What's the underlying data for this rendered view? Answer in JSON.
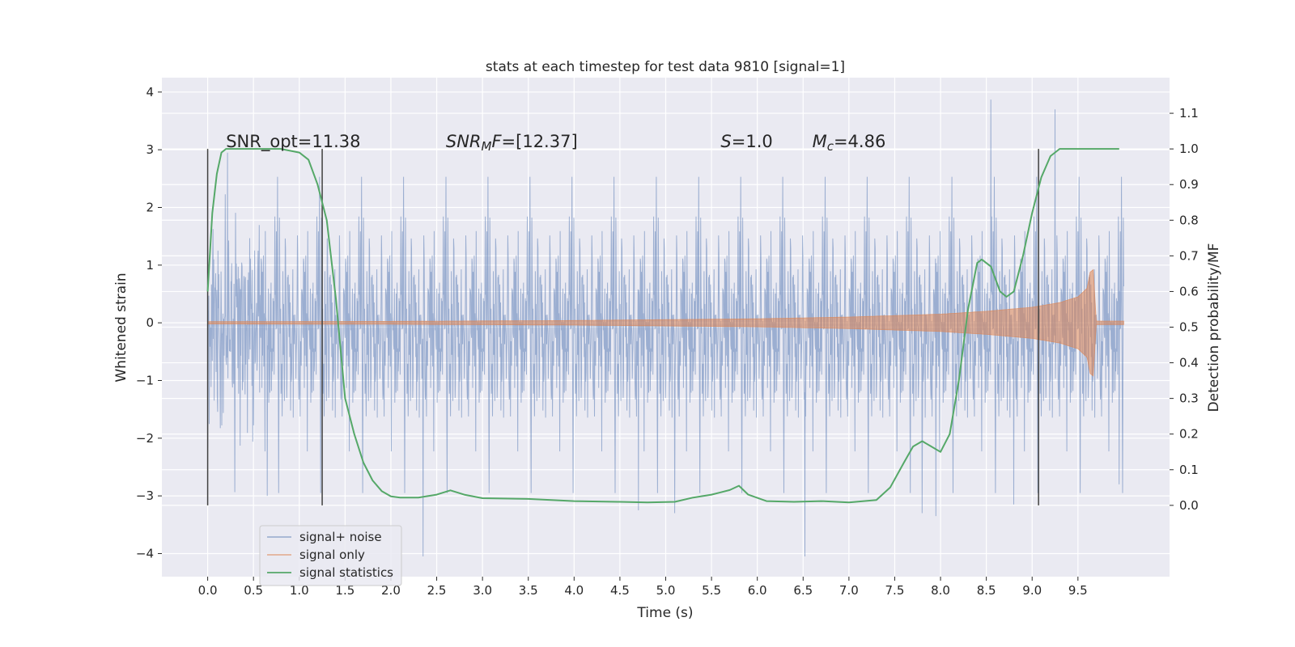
{
  "chart_data": {
    "type": "line",
    "title": "stats at each timestep for test data 9810 [signal=1]",
    "xlabel": "Time (s)",
    "ylabel": "Whitened strain",
    "ylabel_right": "Detection probability/MF",
    "xlim": [
      -0.5,
      10.5
    ],
    "ylim": [
      -4.4,
      4.25
    ],
    "ylim_right": [
      -0.2,
      1.2
    ],
    "xticks": [
      0.0,
      0.5,
      1.0,
      1.5,
      2.0,
      2.5,
      3.0,
      3.5,
      4.0,
      4.5,
      5.0,
      5.5,
      6.0,
      6.5,
      7.0,
      7.5,
      8.0,
      8.5,
      9.0,
      9.5
    ],
    "xtick_labels": [
      "0.0",
      "0.5",
      "1.0",
      "1.5",
      "2.0",
      "2.5",
      "3.0",
      "3.5",
      "4.0",
      "4.5",
      "5.0",
      "5.5",
      "6.0",
      "6.5",
      "7.0",
      "7.5",
      "8.0",
      "8.5",
      "9.0",
      "9.5"
    ],
    "yticks_left": [
      -4,
      -3,
      -2,
      -1,
      0,
      1,
      2,
      3,
      4
    ],
    "ytick_labels_left": [
      "−4",
      "−3",
      "−2",
      "−1",
      "0",
      "1",
      "2",
      "3",
      "4"
    ],
    "yticks_right": [
      0.0,
      0.1,
      0.2,
      0.3,
      0.4,
      0.5,
      0.6,
      0.7,
      0.8,
      0.9,
      1.0,
      1.1
    ],
    "ytick_labels_right": [
      "0.0",
      "0.1",
      "0.2",
      "0.3",
      "0.4",
      "0.5",
      "0.6",
      "0.7",
      "0.8",
      "0.9",
      "1.0",
      "1.1"
    ],
    "grid": true,
    "legend_position": "lower-left",
    "annotations": [
      {
        "id": "snr-opt",
        "parts": [
          {
            "t": "SNR_opt=11.38",
            "style": "normal"
          }
        ],
        "x": 0.2,
        "y_right": 1.0
      },
      {
        "id": "snr-mf",
        "parts": [
          {
            "t": "SNR",
            "style": "italic"
          },
          {
            "t": "M",
            "style": "italic-sub"
          },
          {
            "t": "F",
            "style": "italic"
          },
          {
            "t": "=[12.37]",
            "style": "normal"
          }
        ],
        "x": 2.6,
        "y_right": 1.0
      },
      {
        "id": "s-value",
        "parts": [
          {
            "t": "S",
            "style": "italic"
          },
          {
            "t": "=1.0",
            "style": "normal"
          }
        ],
        "x": 5.6,
        "y_right": 1.0
      },
      {
        "id": "mc-value",
        "parts": [
          {
            "t": "M",
            "style": "italic"
          },
          {
            "t": "c",
            "style": "italic-sub"
          },
          {
            "t": "=4.86",
            "style": "normal"
          }
        ],
        "x": 6.6,
        "y_right": 1.0
      }
    ],
    "vertical_markers": [
      0.0,
      1.25,
      9.07
    ],
    "vertical_marker_range_right": [
      0.0,
      1.0
    ],
    "series": [
      {
        "name": "signal+ noise",
        "axis": "left",
        "color": "#4c72b0",
        "opacity": 0.5,
        "x_range": [
          0.0,
          10.0
        ],
        "envelope_typical": 1.75,
        "notable_extrema": [
          {
            "x": 0.65,
            "y": -3.0
          },
          {
            "x": 2.35,
            "y": -4.05
          },
          {
            "x": 4.7,
            "y": -3.25
          },
          {
            "x": 5.1,
            "y": -3.3
          },
          {
            "x": 6.52,
            "y": -4.05
          },
          {
            "x": 7.8,
            "y": -3.3
          },
          {
            "x": 7.95,
            "y": -3.35
          },
          {
            "x": 8.55,
            "y": 3.87
          },
          {
            "x": 9.25,
            "y": 3.7
          },
          {
            "x": 8.8,
            "y": -3.15
          },
          {
            "x": 9.95,
            "y": -2.8
          }
        ]
      },
      {
        "name": "signal only",
        "axis": "left",
        "color": "#dd8452",
        "opacity": 0.55,
        "type": "chirp-envelope",
        "envelope_x": [
          0.0,
          2.0,
          4.0,
          6.0,
          7.0,
          8.0,
          8.5,
          9.0,
          9.3,
          9.5,
          9.6,
          9.66,
          9.7,
          10.0
        ],
        "envelope_y": [
          0.02,
          0.025,
          0.04,
          0.07,
          0.1,
          0.15,
          0.2,
          0.27,
          0.35,
          0.45,
          0.6,
          1.1,
          0.03,
          0.03
        ]
      },
      {
        "name": "signal statistics",
        "axis": "right",
        "color": "#55a868",
        "x": [
          0.0,
          0.05,
          0.1,
          0.15,
          0.2,
          0.3,
          0.5,
          0.8,
          1.0,
          1.1,
          1.2,
          1.3,
          1.4,
          1.5,
          1.6,
          1.7,
          1.8,
          1.9,
          2.0,
          2.1,
          2.3,
          2.5,
          2.65,
          2.8,
          3.0,
          3.5,
          4.0,
          4.5,
          4.8,
          5.1,
          5.3,
          5.5,
          5.7,
          5.8,
          5.9,
          6.1,
          6.4,
          6.7,
          7.0,
          7.3,
          7.45,
          7.6,
          7.7,
          7.8,
          7.9,
          8.0,
          8.1,
          8.2,
          8.3,
          8.4,
          8.45,
          8.55,
          8.65,
          8.72,
          8.8,
          8.9,
          9.0,
          9.1,
          9.2,
          9.3,
          9.5,
          9.8,
          9.95
        ],
        "y": [
          0.6,
          0.82,
          0.93,
          0.99,
          1.0,
          1.0,
          1.0,
          1.0,
          0.99,
          0.97,
          0.9,
          0.8,
          0.58,
          0.3,
          0.2,
          0.12,
          0.07,
          0.04,
          0.025,
          0.022,
          0.022,
          0.03,
          0.042,
          0.03,
          0.02,
          0.018,
          0.012,
          0.01,
          0.008,
          0.01,
          0.022,
          0.03,
          0.043,
          0.055,
          0.03,
          0.012,
          0.01,
          0.012,
          0.008,
          0.015,
          0.05,
          0.12,
          0.165,
          0.18,
          0.165,
          0.15,
          0.2,
          0.35,
          0.55,
          0.68,
          0.69,
          0.67,
          0.6,
          0.585,
          0.6,
          0.7,
          0.82,
          0.92,
          0.98,
          1.0,
          1.0,
          1.0,
          1.0
        ]
      }
    ]
  }
}
